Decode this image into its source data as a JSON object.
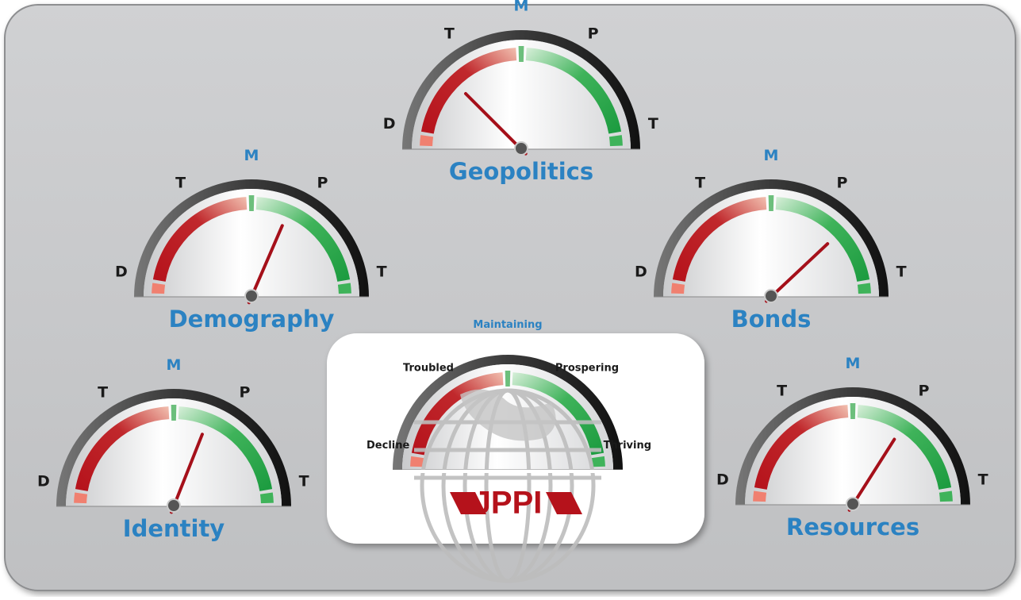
{
  "gauges": [
    {
      "title": "Geopolitics",
      "labels": [
        "D",
        "T",
        "M",
        "P",
        "T"
      ],
      "reading": 25
    },
    {
      "title": "Demography",
      "labels": [
        "D",
        "T",
        "M",
        "P",
        "T"
      ],
      "reading": 63
    },
    {
      "title": "Bonds",
      "labels": [
        "D",
        "T",
        "M",
        "P",
        "T"
      ],
      "reading": 76
    },
    {
      "title": "Identity",
      "labels": [
        "D",
        "T",
        "M",
        "P",
        "T"
      ],
      "reading": 62
    },
    {
      "title": "Resources",
      "labels": [
        "D",
        "T",
        "M",
        "P",
        "T"
      ],
      "reading": 68
    }
  ],
  "center": {
    "labels": [
      "Decline",
      "Troubled",
      "Maintaining",
      "Prospering",
      "Thriving"
    ],
    "logo": "JPPI"
  }
}
